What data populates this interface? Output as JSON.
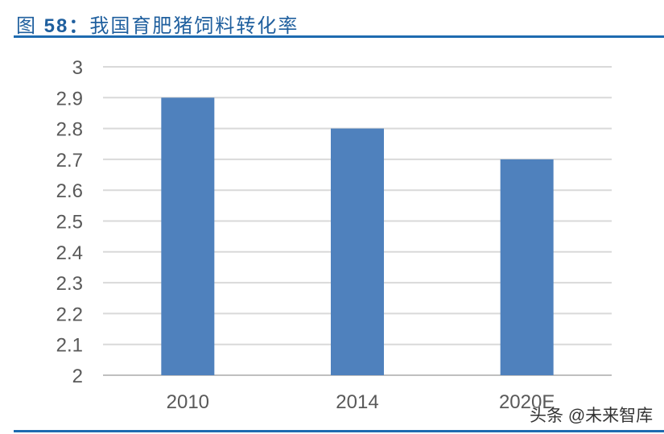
{
  "title": {
    "prefix": "图",
    "number": "58：",
    "text": "我国育肥猪饲料转化率"
  },
  "watermark": "头条 @未来智库",
  "chart_data": {
    "type": "bar",
    "categories": [
      "2010",
      "2014",
      "2020E"
    ],
    "values": [
      2.9,
      2.8,
      2.7
    ],
    "ylim": [
      2,
      3
    ],
    "yticks": [
      "2",
      "2.1",
      "2.2",
      "2.3",
      "2.4",
      "2.5",
      "2.6",
      "2.7",
      "2.8",
      "2.9",
      "3"
    ],
    "grid": true,
    "bar_color": "#4f81bd",
    "title": "",
    "xlabel": "",
    "ylabel": ""
  }
}
